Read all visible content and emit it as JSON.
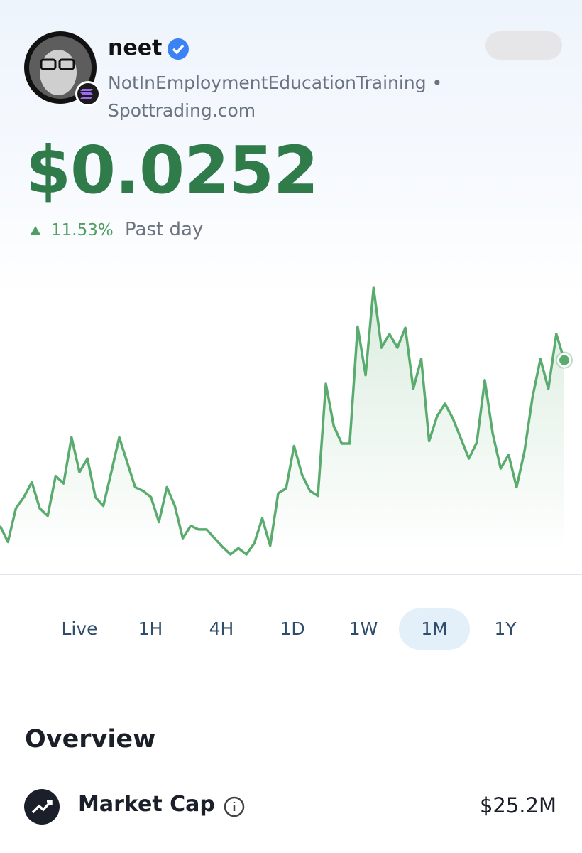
{
  "header": {
    "name": "neet",
    "subtitle_lines": [
      "NotInEmploymentEducationTraining •",
      "Spottrading.com"
    ]
  },
  "price": {
    "value": "$0.0252",
    "change": "11.53%",
    "period": "Past day"
  },
  "chart_data": {
    "type": "line",
    "color": "#5aab6e",
    "ylim": [
      0.008,
      0.033
    ],
    "values": [
      0.0119,
      0.0106,
      0.0133,
      0.0142,
      0.0154,
      0.0133,
      0.0127,
      0.0159,
      0.0153,
      0.019,
      0.0162,
      0.0173,
      0.0142,
      0.0135,
      0.0162,
      0.019,
      0.017,
      0.015,
      0.0147,
      0.0142,
      0.0122,
      0.015,
      0.0135,
      0.0109,
      0.0119,
      0.0116,
      0.0116,
      0.0109,
      0.0102,
      0.0096,
      0.0101,
      0.0096,
      0.0105,
      0.0125,
      0.0103,
      0.0145,
      0.0149,
      0.0183,
      0.016,
      0.0147,
      0.0143,
      0.0233,
      0.0199,
      0.0185,
      0.0185,
      0.0279,
      0.024,
      0.031,
      0.0262,
      0.0273,
      0.0262,
      0.0278,
      0.0229,
      0.0253,
      0.0187,
      0.0207,
      0.0217,
      0.0205,
      0.0189,
      0.0173,
      0.0186,
      0.0236,
      0.0193,
      0.0165,
      0.0176,
      0.015,
      0.0179,
      0.0222,
      0.0253,
      0.0229,
      0.0273,
      0.0252
    ]
  },
  "timeframes": {
    "options": [
      "Live",
      "1H",
      "4H",
      "1D",
      "1W",
      "1M",
      "1Y"
    ],
    "selected": "1M"
  },
  "overview": {
    "title": "Overview",
    "rows": [
      {
        "label": "Market Cap",
        "value": "$25.2M"
      }
    ]
  }
}
